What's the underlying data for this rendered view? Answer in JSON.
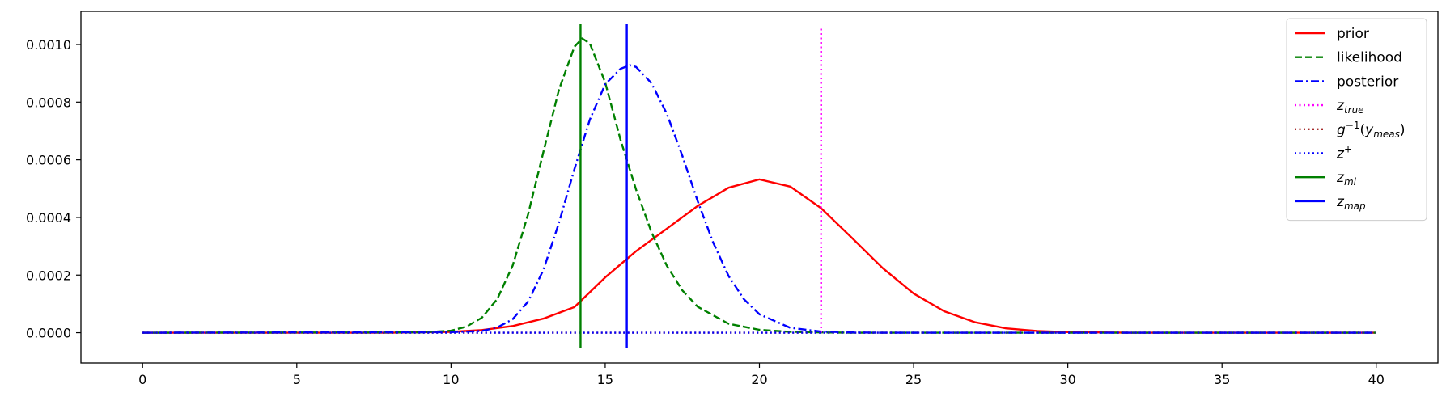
{
  "chart_data": {
    "type": "line",
    "title": "",
    "xlabel": "",
    "ylabel": "",
    "xlim": [
      -2,
      42
    ],
    "ylim": [
      -0.000105,
      0.001115
    ],
    "x_ticks": [
      0,
      5,
      10,
      15,
      20,
      25,
      30,
      35,
      40
    ],
    "x_tick_labels": [
      "0",
      "5",
      "10",
      "15",
      "20",
      "25",
      "30",
      "35",
      "40"
    ],
    "y_ticks": [
      0.0,
      0.0002,
      0.0004,
      0.0006,
      0.0008,
      0.001
    ],
    "y_tick_labels": [
      "0.0000",
      "0.0002",
      "0.0004",
      "0.0006",
      "0.0008",
      "0.0010"
    ],
    "grid": false,
    "legend_position": "top-right",
    "series": [
      {
        "name": "prior",
        "kind": "curve",
        "color": "#ff0000",
        "dash": "solid",
        "x": [
          0,
          8,
          10,
          11,
          12,
          13,
          14,
          15,
          16,
          17,
          18,
          19,
          20,
          21,
          22,
          23,
          24,
          25,
          26,
          27,
          28,
          29,
          30,
          32,
          40
        ],
        "y": [
          0.0,
          0.0,
          3e-06,
          9e-06,
          2.3e-05,
          4.9e-05,
          8.9e-05,
          0.000192,
          0.000283,
          0.000361,
          0.00044,
          0.000503,
          0.000532,
          0.000507,
          0.000432,
          0.000329,
          0.000224,
          0.000136,
          7.4e-05,
          3.6e-05,
          1.5e-05,
          6e-06,
          2e-06,
          0.0,
          0.0
        ]
      },
      {
        "name": "likelihood",
        "kind": "curve",
        "color": "#008000",
        "dash": "dashed",
        "x": [
          0,
          9,
          10,
          10.5,
          11,
          11.5,
          12,
          12.5,
          13,
          13.5,
          14,
          14.25,
          14.5,
          15,
          15.5,
          16,
          16.5,
          17,
          17.5,
          18,
          19,
          20,
          21,
          22,
          23,
          25,
          40
        ],
        "y": [
          0.0,
          1e-06,
          7e-06,
          2.1e-05,
          5.2e-05,
          0.000117,
          0.000233,
          0.000411,
          0.000629,
          0.000843,
          0.000992,
          0.001021,
          0.001004,
          0.000868,
          0.000668,
          0.000497,
          0.000349,
          0.000232,
          0.000147,
          9e-05,
          3.1e-05,
          1e-05,
          3e-06,
          1e-06,
          0.0,
          0.0,
          0.0
        ]
      },
      {
        "name": "posterior",
        "kind": "curve",
        "color": "#0000ff",
        "dash": "dashdot",
        "x": [
          0,
          10,
          11,
          11.5,
          12,
          12.5,
          13,
          13.5,
          14,
          14.5,
          15,
          15.5,
          15.8,
          16,
          16.5,
          17,
          17.5,
          18,
          18.5,
          19,
          19.5,
          20,
          21,
          22,
          23,
          24,
          40
        ],
        "y": [
          0.0,
          2e-06,
          6e-06,
          1.8e-05,
          4.7e-05,
          0.000108,
          0.000219,
          0.000381,
          0.000567,
          0.000739,
          0.000862,
          0.000916,
          0.000928,
          0.000922,
          0.000866,
          0.000759,
          0.000614,
          0.000456,
          0.000313,
          0.000197,
          0.000116,
          6.4e-05,
          1.7e-05,
          4e-06,
          1e-06,
          0.0,
          0.0
        ]
      },
      {
        "name": "z_true",
        "kind": "vline",
        "color": "#ff00ff",
        "dash": "dotted",
        "x": 22.0,
        "y_range": [
          0.0,
          0.00106
        ]
      },
      {
        "name": "g^-1(y_meas)",
        "kind": "hline",
        "color": "#a52a2a",
        "dash": "dotted",
        "x_range": [
          0,
          40
        ],
        "y": 0.0
      },
      {
        "name": "z^+",
        "kind": "hline",
        "color": "#0000ff",
        "dash": "dotted",
        "x_range": [
          0,
          40
        ],
        "y": 0.0
      },
      {
        "name": "z_ml",
        "kind": "vline",
        "color": "#008000",
        "dash": "solid",
        "x": 14.2,
        "y_range": [
          -5.3e-05,
          0.00107
        ]
      },
      {
        "name": "z_map",
        "kind": "vline",
        "color": "#0000ff",
        "dash": "solid",
        "x": 15.7,
        "y_range": [
          -5.3e-05,
          0.00107
        ]
      }
    ],
    "legend": [
      {
        "label": "prior",
        "main": "prior",
        "sub": "",
        "sup": "",
        "tail": "",
        "italic": false,
        "color": "#ff0000",
        "dash": "solid"
      },
      {
        "label": "likelihood",
        "main": "likelihood",
        "sub": "",
        "sup": "",
        "tail": "",
        "italic": false,
        "color": "#008000",
        "dash": "dashed"
      },
      {
        "label": "posterior",
        "main": "posterior",
        "sub": "",
        "sup": "",
        "tail": "",
        "italic": false,
        "color": "#0000ff",
        "dash": "dashdot"
      },
      {
        "label": "z_true",
        "main": "z",
        "sub": "true",
        "sup": "",
        "tail": "",
        "italic": true,
        "color": "#ff00ff",
        "dash": "dotted"
      },
      {
        "label": "g^-1(y_meas)",
        "main": "g",
        "sub": "",
        "sup": "−1",
        "tail": "(y_meas)",
        "italic": true,
        "color": "#a52a2a",
        "dash": "dotted"
      },
      {
        "label": "z^+",
        "main": "z",
        "sub": "",
        "sup": "+",
        "tail": "",
        "italic": true,
        "color": "#0000ff",
        "dash": "dotted"
      },
      {
        "label": "z_ml",
        "main": "z",
        "sub": "ml",
        "sup": "",
        "tail": "",
        "italic": true,
        "color": "#008000",
        "dash": "solid"
      },
      {
        "label": "z_map",
        "main": "z",
        "sub": "map",
        "sup": "",
        "tail": "",
        "italic": true,
        "color": "#0000ff",
        "dash": "solid"
      }
    ]
  }
}
